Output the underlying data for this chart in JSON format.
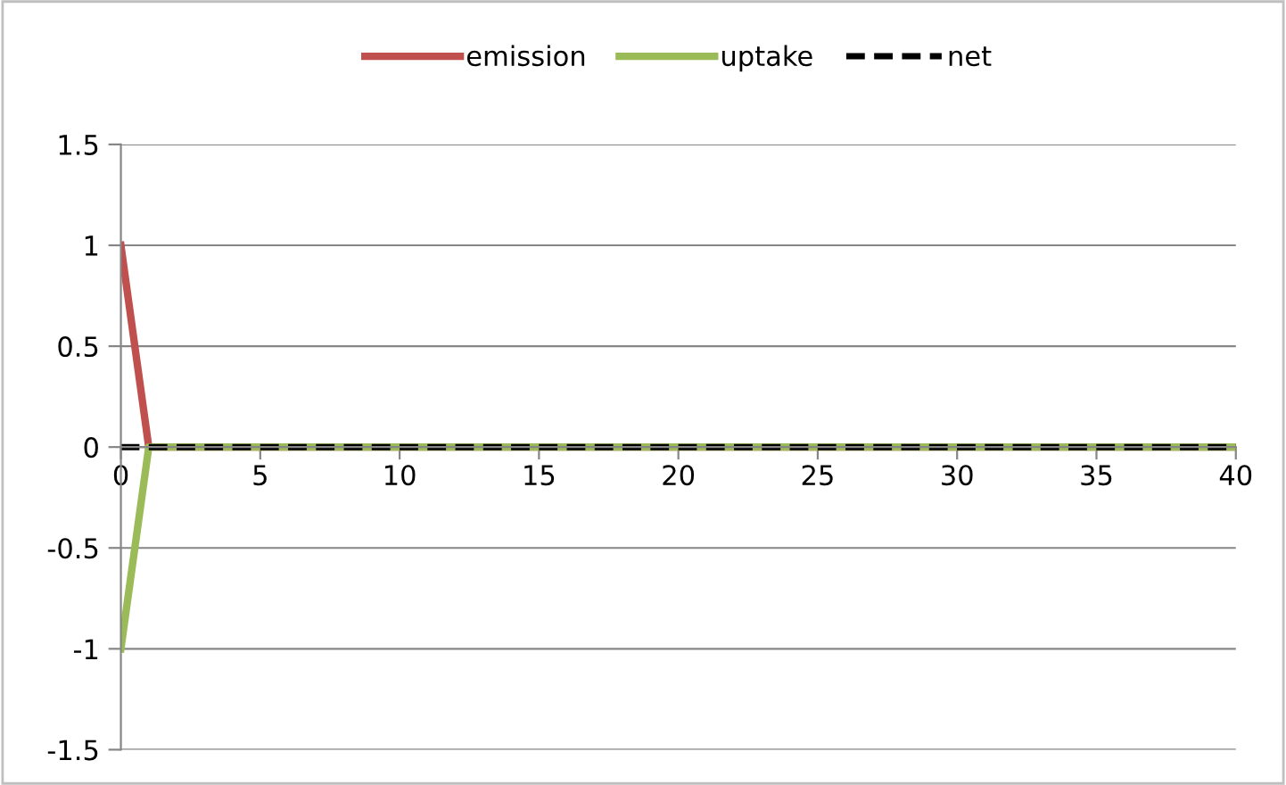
{
  "chart_data": {
    "type": "line",
    "x": [
      0,
      1,
      40
    ],
    "series": [
      {
        "name": "emission",
        "color": "#c0504d",
        "values": [
          1,
          0,
          0
        ]
      },
      {
        "name": "uptake",
        "color": "#9bbb59",
        "values": [
          -1,
          0,
          0
        ]
      },
      {
        "name": "net",
        "color": "#000000",
        "values": [
          0,
          0,
          0
        ],
        "line_style": "dashed"
      }
    ],
    "xlim": [
      0,
      40
    ],
    "xticks": [
      0,
      5,
      10,
      15,
      20,
      25,
      30,
      35,
      40
    ],
    "ylim": [
      -1.5,
      1.5
    ],
    "yticks": [
      -1.5,
      -1,
      -0.5,
      0,
      0.5,
      1,
      1.5
    ],
    "grid": "y",
    "legend": "top",
    "marker": "none"
  }
}
